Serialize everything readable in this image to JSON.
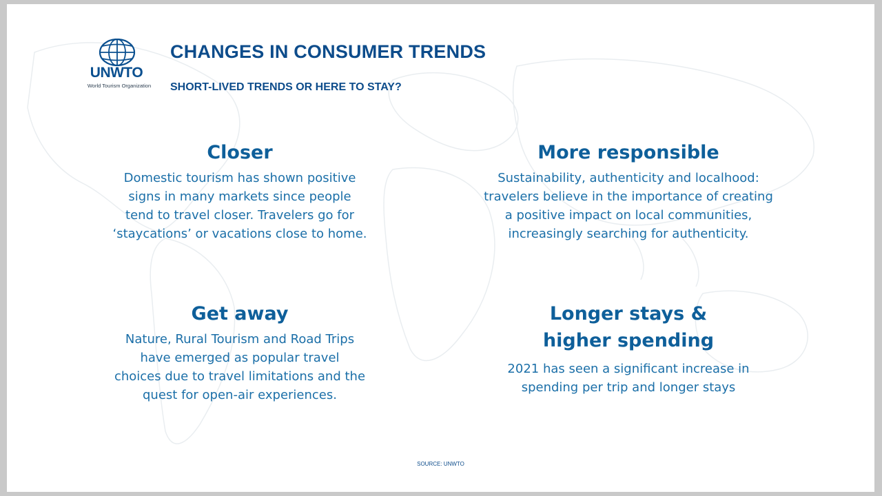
{
  "logo": {
    "name": "UNWTO",
    "subtitle": "World Tourism Organization"
  },
  "header": {
    "title": "CHANGES IN CONSUMER TRENDS",
    "subtitle": "SHORT-LIVED TRENDS OR HERE TO STAY?"
  },
  "trends": [
    {
      "heading": "Closer",
      "body": "Domestic tourism has shown positive\nsigns in many markets since people\ntend to travel closer. Travelers go for\n‘staycations’ or vacations close to home."
    },
    {
      "heading": "More responsible",
      "body": "Sustainability, authenticity and localhood:\ntravelers believe in the importance of creating\na positive impact on local communities,\nincreasingly searching for authenticity."
    },
    {
      "heading": "Get away",
      "body": "Nature, Rural Tourism and Road Trips\nhave emerged  as  popular  travel\nchoices  due  to travel limitations and the\nquest for open-air experiences."
    },
    {
      "heading": "Longer stays &\nhigher spending",
      "body": "2021 has seen a significant increase in\nspending per trip and longer stays"
    }
  ],
  "footer": {
    "source": "SOURCE: UNWTO"
  },
  "colors": {
    "brand_blue": "#0d4c8b",
    "body_blue": "#1b6fa8"
  }
}
